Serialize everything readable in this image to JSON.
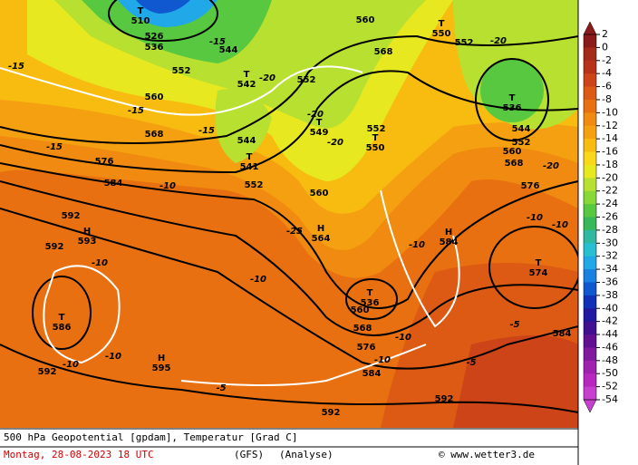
{
  "map": {
    "centers": [
      {
        "symbol": "T",
        "value": "510"
      },
      {
        "symbol": "T",
        "value": "542"
      },
      {
        "symbol": "T",
        "value": "549"
      },
      {
        "symbol": "T",
        "value": "550"
      },
      {
        "symbol": "T",
        "value": "536"
      },
      {
        "symbol": "T",
        "value": "541"
      },
      {
        "symbol": "T",
        "value": "550"
      },
      {
        "symbol": "H",
        "value": "564"
      },
      {
        "symbol": "H",
        "value": "593"
      },
      {
        "symbol": "H",
        "value": "584"
      },
      {
        "symbol": "T",
        "value": "574"
      },
      {
        "symbol": "T",
        "value": "586"
      },
      {
        "symbol": "H",
        "value": "595"
      },
      {
        "symbol": "T",
        "value": "536"
      }
    ],
    "contour_labels": [
      "526",
      "536",
      "552",
      "552",
      "552",
      "552",
      "552",
      "552",
      "560",
      "560",
      "560",
      "560",
      "560",
      "568",
      "568",
      "568",
      "568",
      "576",
      "576",
      "576",
      "584",
      "584",
      "584",
      "592",
      "592",
      "592",
      "592",
      "592",
      "544",
      "544",
      "544",
      "-15",
      "-15",
      "-15",
      "-25",
      "-15",
      "-15",
      "-20",
      "-20",
      "-20",
      "-20",
      "-20",
      "-10",
      "-10",
      "-10",
      "-10",
      "-10",
      "-10",
      "-10",
      "-10",
      "-10",
      "-10",
      "-5",
      "-5",
      "-5"
    ]
  },
  "colorbar": {
    "ticks": [
      2,
      0,
      -2,
      -4,
      -6,
      -8,
      -10,
      -12,
      -14,
      -16,
      -18,
      -20,
      -22,
      -24,
      -26,
      -28,
      -30,
      -32,
      -34,
      -36,
      -38,
      -40,
      -42,
      -44,
      -46,
      -48,
      -50,
      -52,
      -54
    ],
    "colors": [
      "#8b1a1a",
      "#a52a1a",
      "#b8321a",
      "#cc4418",
      "#dc5a14",
      "#e87010",
      "#f08a10",
      "#f5a010",
      "#f8bc10",
      "#f8d818",
      "#e8e820",
      "#b8e030",
      "#88d838",
      "#58c840",
      "#38b858",
      "#30b8a0",
      "#28c0d0",
      "#20a8e8",
      "#1880e0",
      "#1058d0",
      "#1030b8",
      "#2018a0",
      "#401090",
      "#601090",
      "#8018a0",
      "#a020b0",
      "#b828c0",
      "#c840d0"
    ]
  },
  "footer": {
    "title": "500 hPa Geopotential [gpdam], Temperatur [Grad C]",
    "date": "Montag, 28-08-2023  18 UTC",
    "model": "(GFS)",
    "analysis": "(Analyse)",
    "credit": "© www.wetter3.de"
  }
}
